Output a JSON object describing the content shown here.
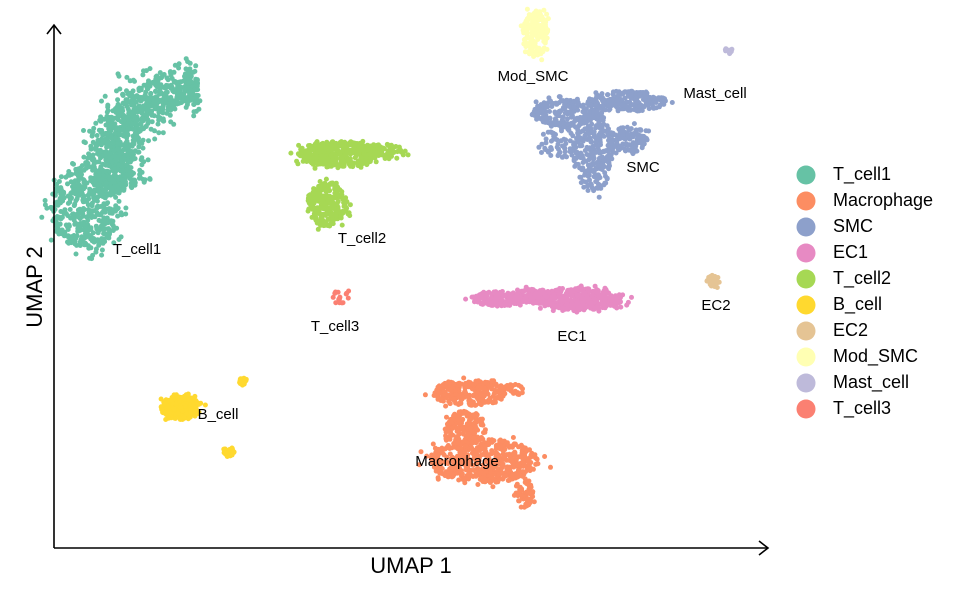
{
  "chart_data": {
    "type": "scatter",
    "title": "",
    "xlabel": "UMAP 1",
    "ylabel": "UMAP 2",
    "grid": false,
    "ticks": "none",
    "legend_position": "right",
    "series": [
      {
        "name": "T_cell1",
        "label": "T_cell1",
        "color": "#66c2a5",
        "clusters": [
          {
            "shape": "arc",
            "cx": -5.6,
            "cy": 4.3,
            "rx": 2.6,
            "ry": 4.6,
            "t0": 95,
            "t1": 205,
            "thickness": 1.3,
            "n": 950
          },
          {
            "shape": "blob",
            "cx": -8.9,
            "cy": 2.7,
            "rx": 1.0,
            "ry": 1.4,
            "n": 450
          }
        ]
      },
      {
        "name": "Macrophage",
        "label": "Macrophage",
        "color": "#fc8d62",
        "clusters": [
          {
            "shape": "blob",
            "cx": 2.0,
            "cy": -5.9,
            "rx": 1.5,
            "ry": 0.75,
            "n": 500
          },
          {
            "shape": "blob",
            "cx": 1.6,
            "cy": -3.6,
            "rx": 1.0,
            "ry": 0.45,
            "n": 260
          },
          {
            "shape": "blob",
            "cx": 1.5,
            "cy": -4.8,
            "rx": 0.55,
            "ry": 0.6,
            "n": 160
          },
          {
            "shape": "blob",
            "cx": 3.1,
            "cy": -7.0,
            "rx": 0.25,
            "ry": 0.5,
            "n": 60
          },
          {
            "shape": "blob",
            "cx": 2.8,
            "cy": -3.5,
            "rx": 0.3,
            "ry": 0.2,
            "n": 20
          }
        ]
      },
      {
        "name": "SMC",
        "label": "SMC",
        "color": "#8da0cb",
        "clusters": [
          {
            "shape": "blob",
            "cx": 5.9,
            "cy": 6.3,
            "rx": 1.1,
            "ry": 0.35,
            "n": 200
          },
          {
            "shape": "blob",
            "cx": 4.2,
            "cy": 5.9,
            "rx": 0.9,
            "ry": 0.45,
            "n": 180
          },
          {
            "shape": "blob",
            "cx": 5.0,
            "cy": 4.6,
            "rx": 0.55,
            "ry": 1.4,
            "n": 260
          },
          {
            "shape": "blob",
            "cx": 6.0,
            "cy": 5.0,
            "rx": 0.5,
            "ry": 0.45,
            "n": 100
          },
          {
            "shape": "blob",
            "cx": 4.1,
            "cy": 5.0,
            "rx": 0.55,
            "ry": 0.7,
            "n": 80
          }
        ]
      },
      {
        "name": "EC1",
        "label": "EC1",
        "color": "#e78ac3",
        "clusters": [
          {
            "shape": "blob",
            "cx": 4.6,
            "cy": -0.4,
            "rx": 1.2,
            "ry": 0.38,
            "n": 380
          },
          {
            "shape": "blob",
            "cx": 2.4,
            "cy": -0.4,
            "rx": 0.75,
            "ry": 0.25,
            "n": 160
          },
          {
            "shape": "blob",
            "cx": 3.4,
            "cy": -0.3,
            "rx": 0.6,
            "ry": 0.25,
            "n": 110
          }
        ]
      },
      {
        "name": "T_cell2",
        "label": "T_cell2",
        "color": "#a6d854",
        "clusters": [
          {
            "shape": "blob",
            "cx": -2.0,
            "cy": 4.5,
            "rx": 1.1,
            "ry": 0.45,
            "n": 360
          },
          {
            "shape": "blob",
            "cx": -2.3,
            "cy": 2.8,
            "rx": 0.55,
            "ry": 0.75,
            "n": 230
          },
          {
            "shape": "blob",
            "cx": -0.8,
            "cy": 4.6,
            "rx": 0.7,
            "ry": 0.25,
            "n": 80
          }
        ]
      },
      {
        "name": "B_cell",
        "label": "B_cell",
        "color": "#ffd92f",
        "clusters": [
          {
            "shape": "blob",
            "cx": -6.3,
            "cy": -4.1,
            "rx": 0.55,
            "ry": 0.4,
            "n": 260
          },
          {
            "shape": "blob",
            "cx": -5.0,
            "cy": -5.6,
            "rx": 0.15,
            "ry": 0.2,
            "n": 22
          },
          {
            "shape": "blob",
            "cx": -4.6,
            "cy": -3.2,
            "rx": 0.1,
            "ry": 0.15,
            "n": 12
          }
        ]
      },
      {
        "name": "EC2",
        "label": "EC2",
        "color": "#e5c494",
        "clusters": [
          {
            "shape": "blob",
            "cx": 8.3,
            "cy": 0.2,
            "rx": 0.2,
            "ry": 0.2,
            "n": 28
          }
        ]
      },
      {
        "name": "Mod_SMC",
        "label": "Mod_SMC",
        "color": "#ffffb3",
        "clusters": [
          {
            "shape": "blob",
            "cx": 3.4,
            "cy": 8.6,
            "rx": 0.35,
            "ry": 0.8,
            "n": 170
          }
        ]
      },
      {
        "name": "Mast_cell",
        "label": "Mast_cell",
        "color": "#bebada",
        "clusters": [
          {
            "shape": "blob",
            "cx": 8.7,
            "cy": 8.0,
            "rx": 0.12,
            "ry": 0.1,
            "n": 14
          }
        ]
      },
      {
        "name": "T_cell3",
        "label": "T_cell3",
        "color": "#fb8072",
        "clusters": [
          {
            "shape": "blob",
            "cx": -1.9,
            "cy": -0.3,
            "rx": 0.2,
            "ry": 0.25,
            "n": 18
          }
        ]
      }
    ]
  }
}
